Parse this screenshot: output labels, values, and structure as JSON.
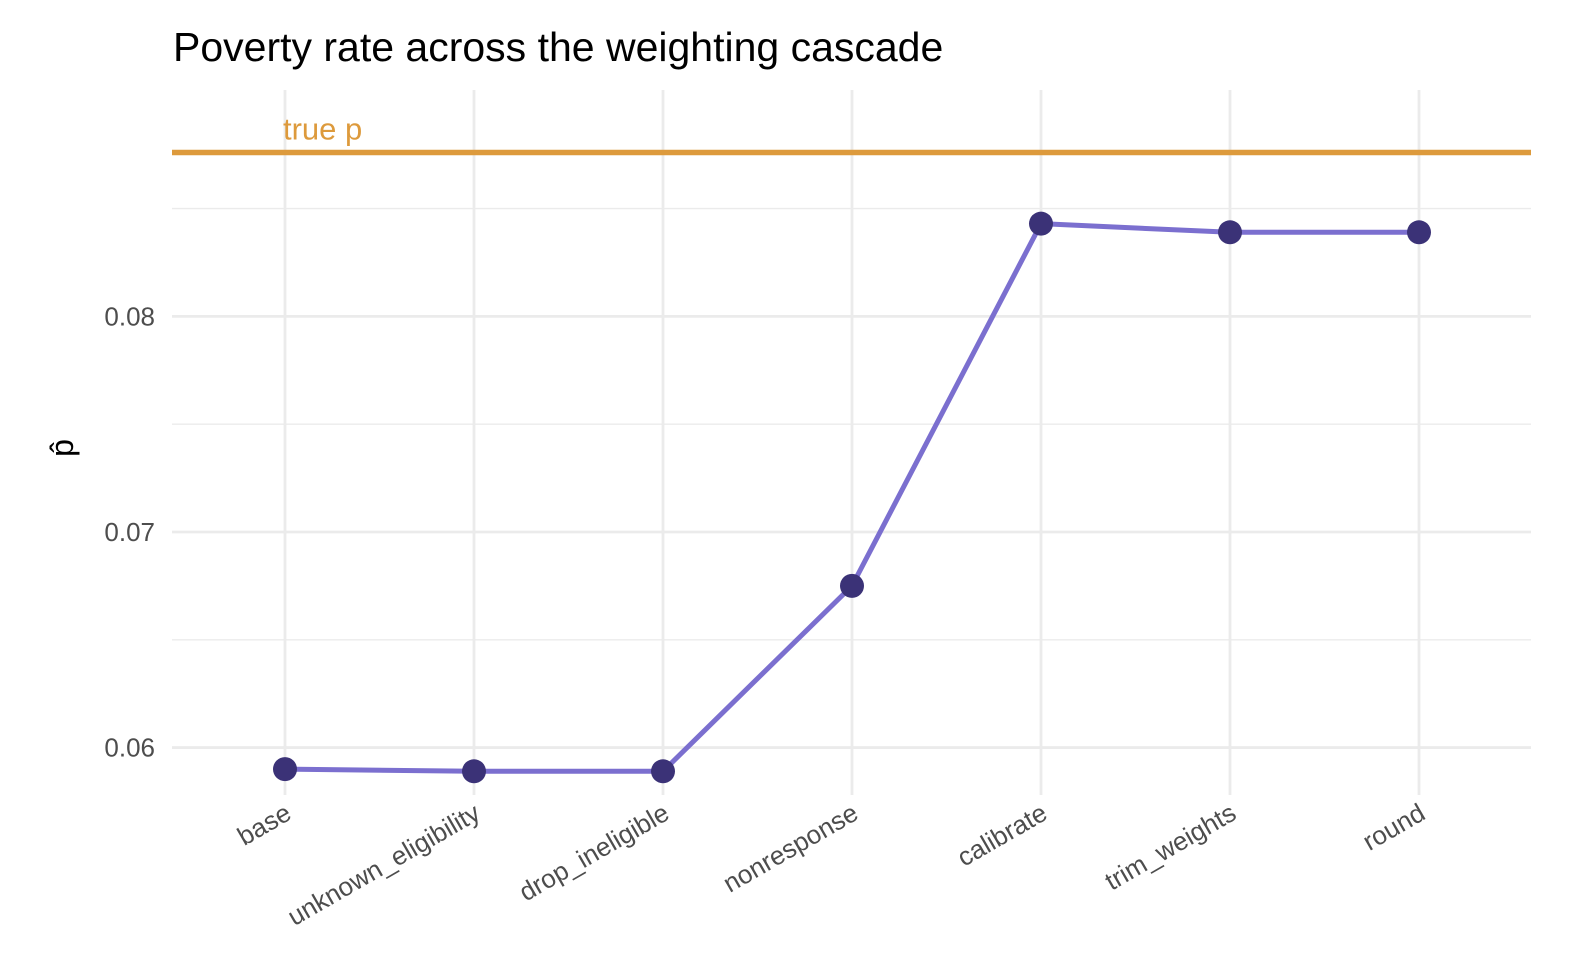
{
  "chart_data": {
    "type": "line",
    "title": "Poverty rate across the weighting cascade",
    "xlabel": "",
    "ylabel": "p̂",
    "categories": [
      "base",
      "unknown_eligibility",
      "drop_ineligible",
      "nonresponse",
      "calibrate",
      "trim_weights",
      "round"
    ],
    "series": [
      {
        "values": [
          0.059,
          0.0589,
          0.0589,
          0.0675,
          0.0843,
          0.0839,
          0.0839
        ]
      }
    ],
    "yticks": [
      0.06,
      0.07,
      0.08
    ],
    "ytick_labels": [
      "0.06",
      "0.07",
      "0.08"
    ],
    "ylim": [
      0.0578,
      0.0905
    ],
    "reference_line": {
      "label": "true p",
      "value": 0.0876
    },
    "grid": true,
    "colors": {
      "line": "#7b6fcf",
      "points": "#3b3277",
      "reference": "#dd9a3c",
      "grid": "#ebebeb"
    }
  }
}
